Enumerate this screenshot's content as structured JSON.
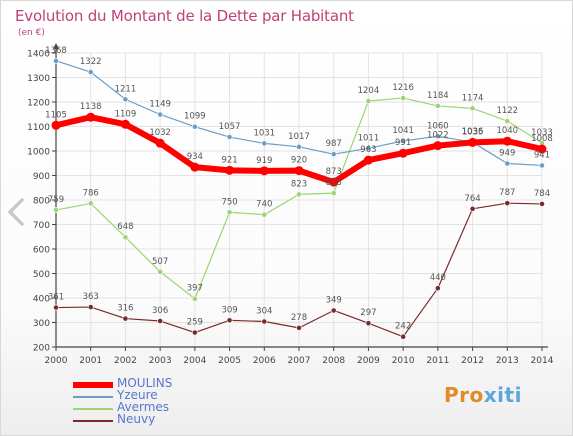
{
  "header": {
    "title": "Evolution du Montant de la Dette par Habitant",
    "unit": "(en €)"
  },
  "logo": {
    "part1": "Pro",
    "part2": "xiti"
  },
  "colors": {
    "title": "#c0407a",
    "axis": "#444444",
    "grid": "#e3e3e3"
  },
  "icons": {
    "nav_prev": "chevron-left-icon"
  },
  "chart_data": {
    "type": "line",
    "x": [
      "2000",
      "2001",
      "2002",
      "2003",
      "2004",
      "2005",
      "2006",
      "2007",
      "2008",
      "2009",
      "2010",
      "2011",
      "2012",
      "2013",
      "2014"
    ],
    "ylim": [
      200,
      1400
    ],
    "yticks": [
      "200",
      "300",
      "400",
      "500",
      "600",
      "700",
      "800",
      "900",
      "1000",
      "1100",
      "1200",
      "1300",
      "1400"
    ],
    "grid": true,
    "legend_position": "bottom-left",
    "series": [
      {
        "name": "MOULINS",
        "color": "#ff0000",
        "values": [
          1105,
          1138,
          1109,
          1032,
          934,
          921,
          919,
          920,
          873,
          963,
          991,
          1022,
          1035,
          1040,
          1008
        ],
        "labels": [
          "1105",
          "1138",
          "1109",
          "1032",
          "934",
          "921",
          "919",
          "920",
          "873",
          "963",
          "991",
          "1022",
          "1035",
          "1040",
          "1008"
        ]
      },
      {
        "name": "Yzeure",
        "color": "#6a9ec8",
        "values": [
          1368,
          1322,
          1211,
          1149,
          1099,
          1057,
          1031,
          1017,
          987,
          1011,
          1041,
          1060,
          1036,
          949,
          941
        ],
        "labels": [
          "1368",
          "1322",
          "1211",
          "1149",
          "1099",
          "1057",
          "1031",
          "1017",
          "987",
          "1011",
          "1041",
          "1060",
          "1036",
          "949",
          "941"
        ]
      },
      {
        "name": "Avermes",
        "color": "#99d673",
        "values": [
          759,
          786,
          648,
          507,
          397,
          750,
          740,
          823,
          828,
          1204,
          1216,
          1184,
          1174,
          1122,
          1033
        ],
        "labels": [
          "759",
          "786",
          "648",
          "507",
          "397",
          "750",
          "740",
          "823",
          "828",
          "1204",
          "1216",
          "1184",
          "1174",
          "1122",
          "1033"
        ]
      },
      {
        "name": "Neuvy",
        "color": "#7a2a2a",
        "values": [
          361,
          363,
          316,
          306,
          259,
          309,
          304,
          278,
          349,
          297,
          242,
          440,
          764,
          787,
          784
        ],
        "labels": [
          "361",
          "363",
          "316",
          "306",
          "259",
          "309",
          "304",
          "278",
          "349",
          "297",
          "242",
          "440",
          "764",
          "787",
          "784"
        ]
      }
    ]
  }
}
